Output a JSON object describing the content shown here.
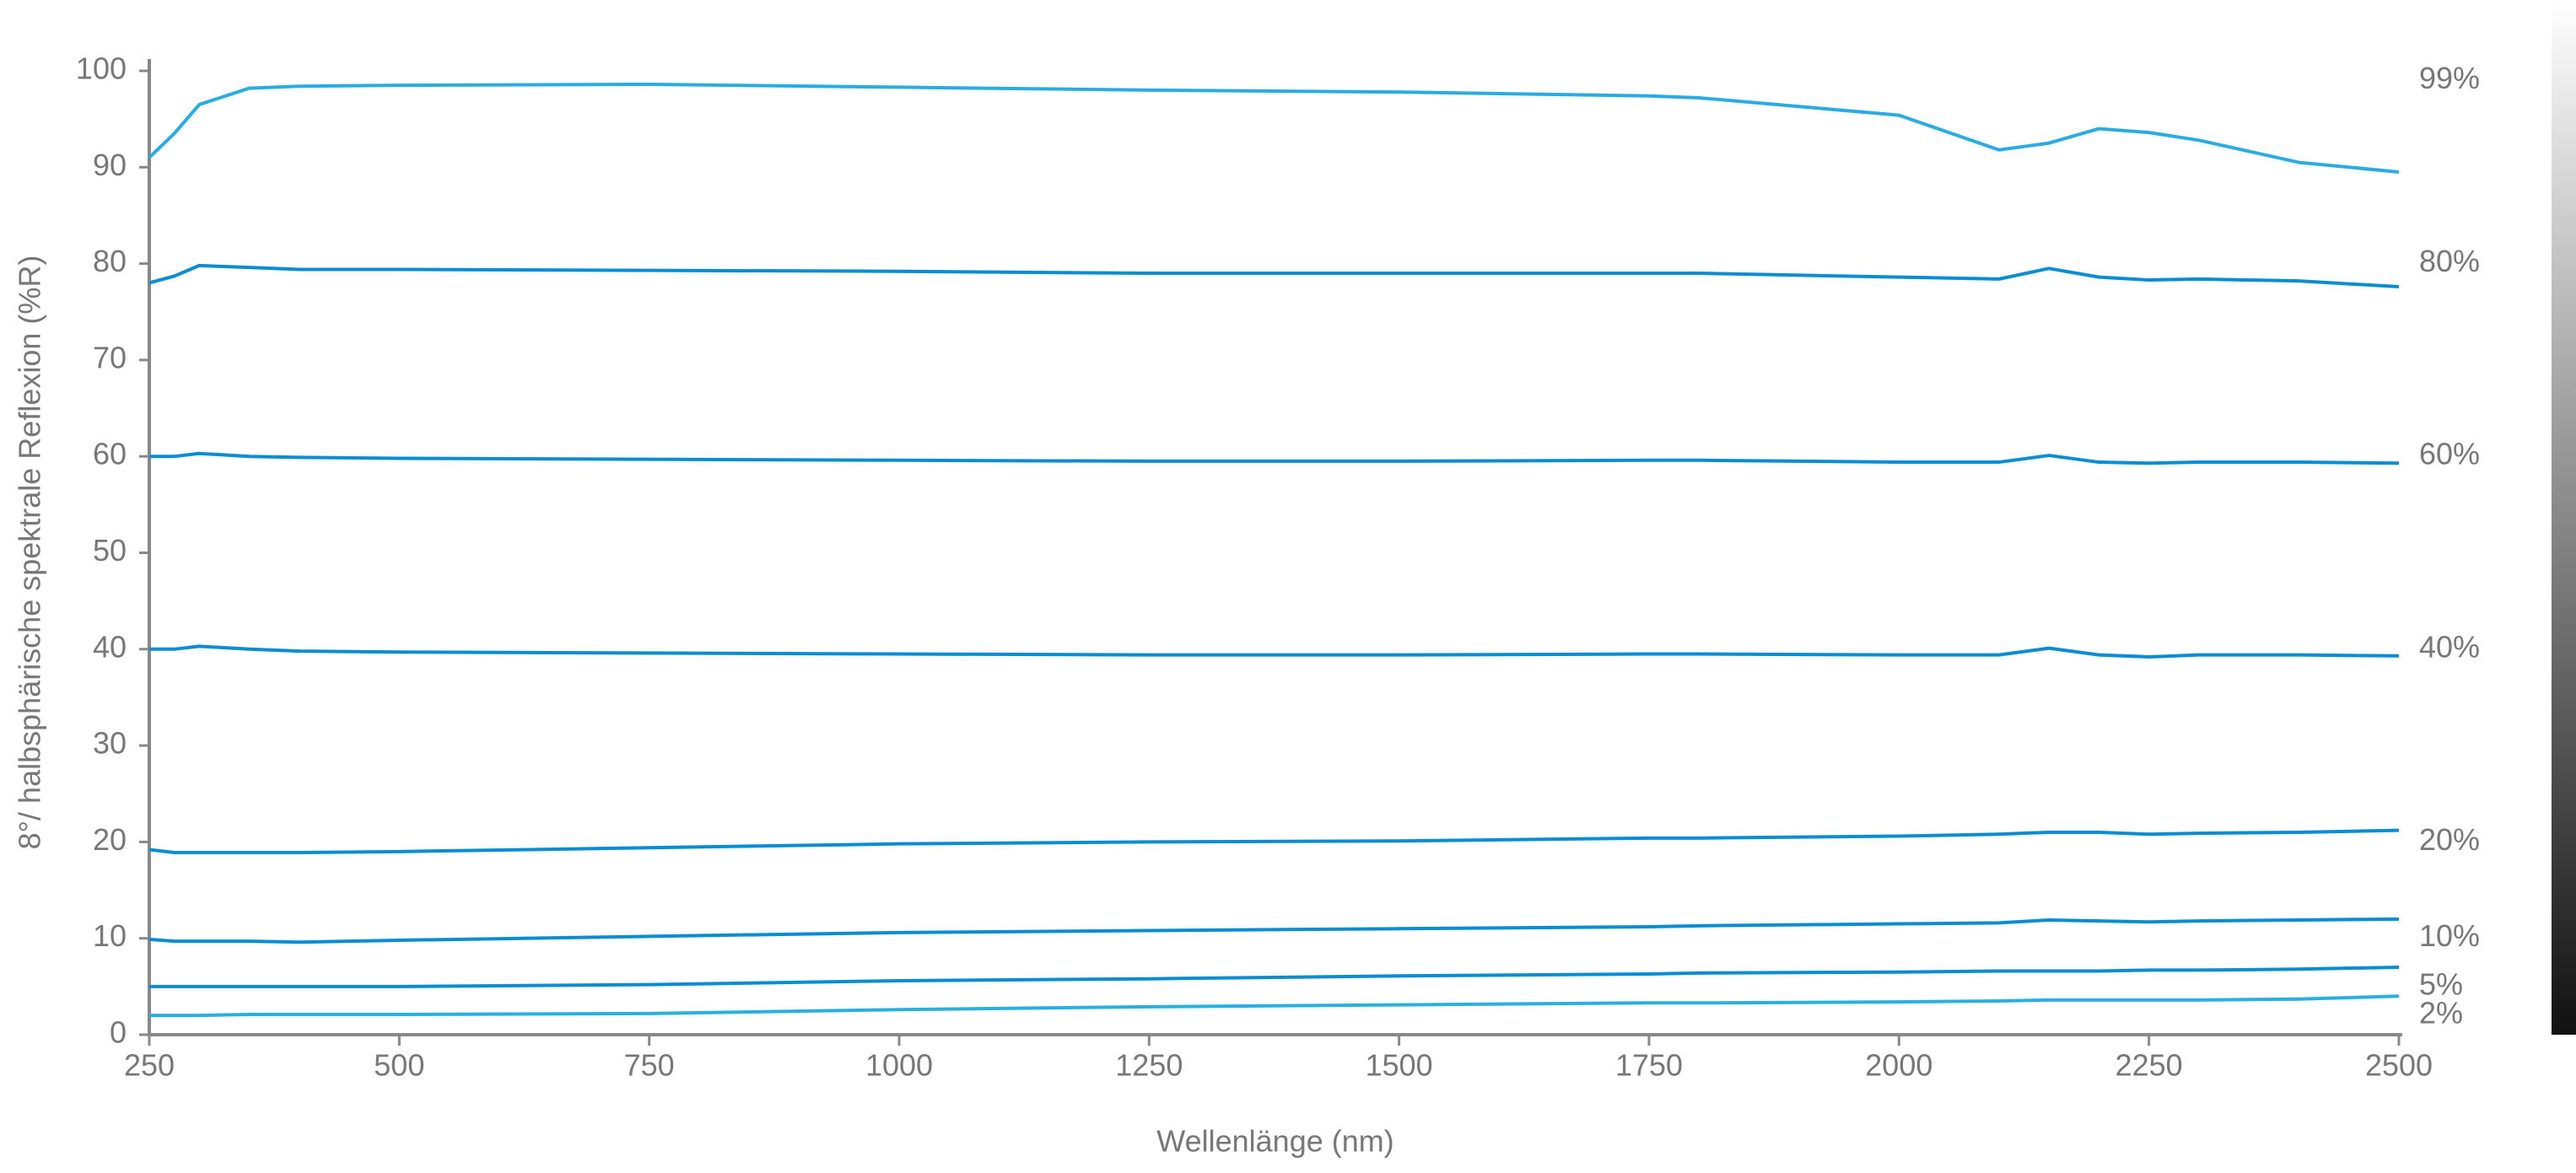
{
  "chart_data": {
    "type": "line",
    "x_label": "Wellenlänge (nm)",
    "y_label": "8°/ halbsphärische  spektrale Reflexion (%R)",
    "x": [
      250,
      275,
      300,
      350,
      400,
      500,
      750,
      1000,
      1250,
      1500,
      1750,
      1800,
      2000,
      2100,
      2150,
      2200,
      2250,
      2300,
      2400,
      2500
    ],
    "series": [
      {
        "name": "99%",
        "color": "#2aace2",
        "values": [
          91,
          93.5,
          96.5,
          98.2,
          98.4,
          98.5,
          98.6,
          98.3,
          98,
          97.8,
          97.4,
          97.2,
          95.4,
          91.8,
          92.5,
          94,
          93.6,
          92.8,
          90.5,
          89.5
        ]
      },
      {
        "name": "80%",
        "color": "#0a8dd2",
        "values": [
          78,
          78.7,
          79.8,
          79.6,
          79.4,
          79.4,
          79.3,
          79.2,
          79,
          79,
          79,
          79,
          78.6,
          78.4,
          79.5,
          78.6,
          78.3,
          78.4,
          78.2,
          77.6
        ]
      },
      {
        "name": "60%",
        "color": "#0a8dd2",
        "values": [
          60,
          60,
          60.3,
          60,
          59.9,
          59.8,
          59.7,
          59.6,
          59.5,
          59.5,
          59.6,
          59.6,
          59.4,
          59.4,
          60.1,
          59.4,
          59.3,
          59.4,
          59.4,
          59.3
        ]
      },
      {
        "name": "40%",
        "color": "#0a8dd2",
        "values": [
          40,
          40,
          40.3,
          40,
          39.8,
          39.7,
          39.6,
          39.5,
          39.4,
          39.4,
          39.5,
          39.5,
          39.4,
          39.4,
          40.1,
          39.4,
          39.2,
          39.4,
          39.4,
          39.3
        ]
      },
      {
        "name": "20%",
        "color": "#0a8dd2",
        "values": [
          19.2,
          18.9,
          18.9,
          18.9,
          18.9,
          19,
          19.4,
          19.8,
          20,
          20.1,
          20.4,
          20.4,
          20.6,
          20.8,
          21,
          21,
          20.8,
          20.9,
          21,
          21.2
        ]
      },
      {
        "name": "10%",
        "color": "#0a8dd2",
        "values": [
          9.9,
          9.7,
          9.7,
          9.7,
          9.6,
          9.8,
          10.2,
          10.6,
          10.8,
          11,
          11.2,
          11.3,
          11.5,
          11.6,
          11.9,
          11.8,
          11.7,
          11.8,
          11.9,
          12
        ]
      },
      {
        "name": "5%",
        "color": "#0a8dd2",
        "values": [
          5,
          5,
          5,
          5,
          5,
          5,
          5.2,
          5.6,
          5.8,
          6.1,
          6.3,
          6.4,
          6.5,
          6.6,
          6.6,
          6.6,
          6.7,
          6.7,
          6.8,
          7
        ]
      },
      {
        "name": "2%",
        "color": "#2ab0e0",
        "values": [
          2,
          2,
          2,
          2.1,
          2.1,
          2.1,
          2.2,
          2.6,
          2.9,
          3.1,
          3.3,
          3.3,
          3.4,
          3.5,
          3.6,
          3.6,
          3.6,
          3.6,
          3.7,
          4
        ]
      }
    ],
    "xlim": [
      250,
      2500
    ],
    "xticks": [
      250,
      500,
      750,
      1000,
      1250,
      1500,
      1750,
      2000,
      2250,
      2500
    ],
    "ylim": [
      0,
      100
    ],
    "yticks": [
      0,
      10,
      20,
      30,
      40,
      50,
      60,
      70,
      80,
      90,
      100
    ],
    "grid": false
  }
}
